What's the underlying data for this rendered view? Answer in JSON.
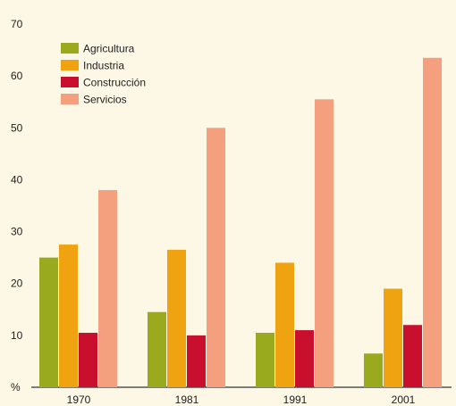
{
  "chart_data": {
    "type": "bar",
    "categories": [
      "1970",
      "1981",
      "1991",
      "2001"
    ],
    "series": [
      {
        "name": "Agricultura",
        "values": [
          25,
          14.5,
          10.5,
          6.5
        ]
      },
      {
        "name": "Industria",
        "values": [
          27.5,
          26.5,
          24,
          19
        ]
      },
      {
        "name": "Construcción",
        "values": [
          10.5,
          10,
          11,
          12
        ]
      },
      {
        "name": "Servicios",
        "values": [
          38,
          50,
          55.5,
          63.5
        ]
      }
    ],
    "title": "",
    "xlabel": "",
    "ylabel": "%",
    "ylim": [
      0,
      70
    ],
    "yticks": [
      10,
      20,
      30,
      40,
      50,
      60,
      70
    ],
    "grid": false,
    "legend_position": "top-left",
    "colors": {
      "Agricultura": "#9aaa1f",
      "Industria": "#f0a310",
      "Construcción": "#c8102e",
      "Servicios": "#f4a07e"
    }
  }
}
